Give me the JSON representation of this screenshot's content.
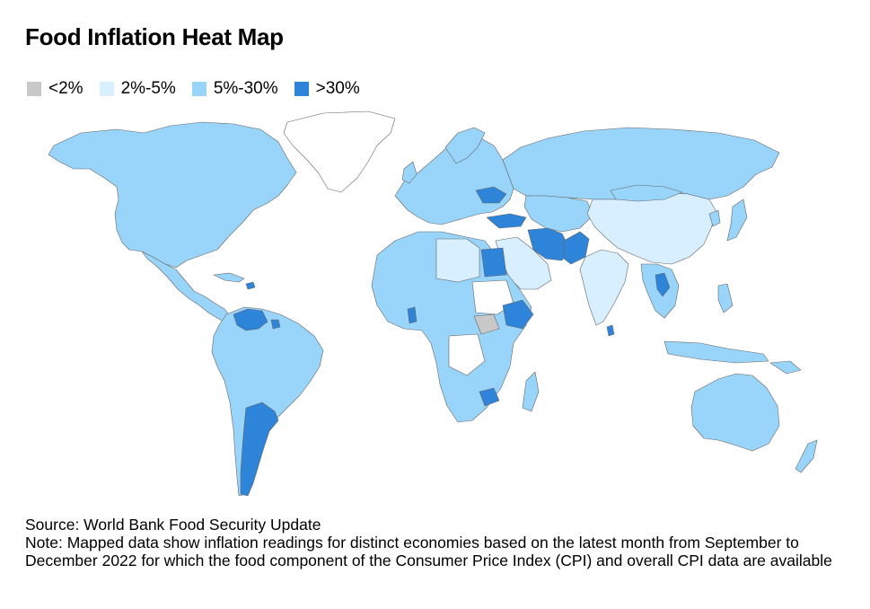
{
  "title": "Food Inflation Heat Map",
  "legend": [
    {
      "label": "<2%",
      "color": "#c8c8c8"
    },
    {
      "label": "2%-5%",
      "color": "#d7efff"
    },
    {
      "label": "5%-30%",
      "color": "#99d5fb"
    },
    {
      "label": ">30%",
      "color": "#2d84d8"
    }
  ],
  "colors": {
    "no_data": "#ffffff",
    "border": "#666666"
  },
  "source": "Source: World Bank Food Security Update",
  "note": "Note: Mapped data show inflation readings for distinct economies based on the latest month from September to December 2022 for which the food component of the Consumer Price Index (CPI) and overall CPI data are available"
}
